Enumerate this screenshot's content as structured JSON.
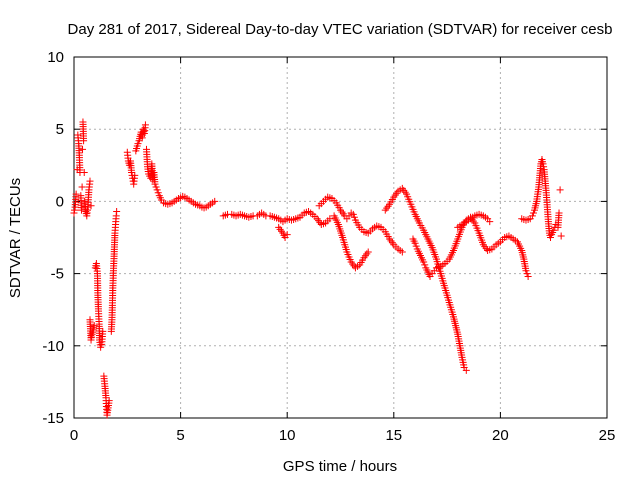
{
  "chart_data": {
    "type": "scatter",
    "title": "Day 281 of 2017, Sidereal Day-to-day VTEC variation (SDTVAR) for receiver cesb",
    "xlabel": "GPS time / hours",
    "ylabel": "SDTVAR / TECUs",
    "xlim": [
      0,
      25
    ],
    "ylim": [
      -15,
      10
    ],
    "xticks": [
      0,
      5,
      10,
      15,
      20,
      25
    ],
    "yticks": [
      -15,
      -10,
      -5,
      0,
      5,
      10
    ],
    "xtick_labels": [
      "0",
      "5",
      "10",
      "15",
      "20",
      "25"
    ],
    "ytick_labels": [
      "-15",
      "-10",
      "-5",
      "0",
      "5",
      "10"
    ],
    "grid": true,
    "marker": "+",
    "series": [
      {
        "name": "SDTVAR",
        "color": "#ff0000",
        "points": [
          [
            0.0,
            -0.8
          ],
          [
            0.05,
            -0.4
          ],
          [
            0.1,
            0.5
          ],
          [
            0.15,
            2.2
          ],
          [
            0.18,
            4.6
          ],
          [
            0.22,
            4.0
          ],
          [
            0.25,
            3.2
          ],
          [
            0.28,
            2.0
          ],
          [
            0.32,
            0.4
          ],
          [
            0.35,
            -0.6
          ],
          [
            0.38,
            1.0
          ],
          [
            0.4,
            3.6
          ],
          [
            0.42,
            5.5
          ],
          [
            0.45,
            4.2
          ],
          [
            0.48,
            2.0
          ],
          [
            0.5,
            0.0
          ],
          [
            0.55,
            -0.7
          ],
          [
            0.6,
            -1.0
          ],
          [
            0.65,
            -0.4
          ],
          [
            0.7,
            0.8
          ],
          [
            0.75,
            1.4
          ],
          [
            0.8,
            -0.3
          ],
          [
            0.75,
            -8.2
          ],
          [
            0.8,
            -9.6
          ],
          [
            0.85,
            -9.2
          ],
          [
            0.95,
            -8.6
          ],
          [
            1.0,
            -4.6
          ],
          [
            1.05,
            -4.3
          ],
          [
            1.1,
            -5.0
          ],
          [
            1.12,
            -6.5
          ],
          [
            1.15,
            -7.6
          ],
          [
            1.18,
            -8.5
          ],
          [
            1.2,
            -9.6
          ],
          [
            1.25,
            -10.1
          ],
          [
            1.3,
            -9.9
          ],
          [
            1.35,
            -9.0
          ],
          [
            1.4,
            -12.1
          ],
          [
            1.45,
            -12.8
          ],
          [
            1.5,
            -13.6
          ],
          [
            1.52,
            -14.2
          ],
          [
            1.55,
            -14.8
          ],
          [
            1.6,
            -14.3
          ],
          [
            1.65,
            -13.8
          ],
          [
            1.75,
            -9.0
          ],
          [
            1.78,
            -8.2
          ],
          [
            1.8,
            -7.2
          ],
          [
            1.82,
            -6.0
          ],
          [
            1.85,
            -4.8
          ],
          [
            1.88,
            -3.8
          ],
          [
            1.9,
            -3.0
          ],
          [
            1.92,
            -2.2
          ],
          [
            1.95,
            -1.6
          ],
          [
            1.98,
            -1.0
          ],
          [
            2.0,
            -0.7
          ],
          [
            2.5,
            3.4
          ],
          [
            2.55,
            2.8
          ],
          [
            2.6,
            2.5
          ],
          [
            2.65,
            2.8
          ],
          [
            2.7,
            2.0
          ],
          [
            2.75,
            1.6
          ],
          [
            2.8,
            1.2
          ],
          [
            2.85,
            1.8
          ],
          [
            2.9,
            3.5
          ],
          [
            3.0,
            4.0
          ],
          [
            3.05,
            4.2
          ],
          [
            3.1,
            4.5
          ],
          [
            3.15,
            4.8
          ],
          [
            3.2,
            4.4
          ],
          [
            3.25,
            5.0
          ],
          [
            3.3,
            4.7
          ],
          [
            3.35,
            5.3
          ],
          [
            3.4,
            3.6
          ],
          [
            3.45,
            2.4
          ],
          [
            3.5,
            1.9
          ],
          [
            3.6,
            1.6
          ],
          [
            3.65,
            2.6
          ],
          [
            3.7,
            1.5
          ],
          [
            3.75,
            2.0
          ],
          [
            3.8,
            1.2
          ],
          [
            3.9,
            0.8
          ],
          [
            4.0,
            0.4
          ],
          [
            4.1,
            0.1
          ],
          [
            4.2,
            -0.1
          ],
          [
            4.3,
            -0.15
          ],
          [
            4.4,
            -0.2
          ],
          [
            4.5,
            -0.15
          ],
          [
            4.6,
            -0.1
          ],
          [
            4.7,
            0.0
          ],
          [
            4.8,
            0.1
          ],
          [
            4.9,
            0.2
          ],
          [
            5.0,
            0.25
          ],
          [
            5.1,
            0.35
          ],
          [
            5.2,
            0.3
          ],
          [
            5.3,
            0.2
          ],
          [
            5.4,
            0.1
          ],
          [
            5.5,
            0.0
          ],
          [
            5.6,
            -0.1
          ],
          [
            5.7,
            -0.2
          ],
          [
            5.8,
            -0.25
          ],
          [
            5.9,
            -0.3
          ],
          [
            6.0,
            -0.4
          ],
          [
            6.1,
            -0.45
          ],
          [
            6.2,
            -0.4
          ],
          [
            6.3,
            -0.3
          ],
          [
            6.4,
            -0.2
          ],
          [
            6.5,
            -0.1
          ],
          [
            6.6,
            0.0
          ],
          [
            7.0,
            -1.0
          ],
          [
            7.2,
            -0.9
          ],
          [
            7.4,
            -0.9
          ],
          [
            7.6,
            -1.0
          ],
          [
            7.8,
            -0.9
          ],
          [
            8.0,
            -1.0
          ],
          [
            8.2,
            -1.1
          ],
          [
            8.4,
            -1.0
          ],
          [
            8.6,
            -1.0
          ],
          [
            8.8,
            -0.8
          ],
          [
            9.0,
            -1.0
          ],
          [
            9.2,
            -1.0
          ],
          [
            9.4,
            -1.1
          ],
          [
            9.6,
            -1.2
          ],
          [
            9.8,
            -1.4
          ],
          [
            10.0,
            -1.2
          ],
          [
            10.2,
            -1.3
          ],
          [
            10.4,
            -1.2
          ],
          [
            10.6,
            -1.1
          ],
          [
            10.8,
            -0.8
          ],
          [
            11.0,
            -0.7
          ],
          [
            11.2,
            -0.9
          ],
          [
            11.4,
            -1.2
          ],
          [
            11.6,
            -1.6
          ],
          [
            11.8,
            -1.5
          ],
          [
            12.0,
            -1.2
          ],
          [
            9.6,
            -1.8
          ],
          [
            9.8,
            -2.2
          ],
          [
            9.9,
            -2.5
          ],
          [
            10.0,
            -2.3
          ],
          [
            11.5,
            -0.3
          ],
          [
            11.7,
            0.0
          ],
          [
            11.9,
            0.3
          ],
          [
            12.1,
            0.2
          ],
          [
            12.3,
            -0.1
          ],
          [
            12.5,
            -0.6
          ],
          [
            12.7,
            -1.0
          ],
          [
            12.8,
            -1.2
          ],
          [
            12.9,
            -1.0
          ],
          [
            13.0,
            -0.8
          ],
          [
            13.1,
            -0.9
          ],
          [
            13.2,
            -1.3
          ],
          [
            13.4,
            -1.8
          ],
          [
            13.6,
            -2.1
          ],
          [
            13.8,
            -2.2
          ],
          [
            14.0,
            -1.9
          ],
          [
            14.2,
            -1.7
          ],
          [
            14.4,
            -1.8
          ],
          [
            14.6,
            -2.1
          ],
          [
            14.8,
            -2.6
          ],
          [
            15.0,
            -3.0
          ],
          [
            15.2,
            -3.3
          ],
          [
            15.4,
            -3.5
          ],
          [
            12.2,
            -1.0
          ],
          [
            12.4,
            -1.6
          ],
          [
            12.6,
            -2.5
          ],
          [
            12.8,
            -3.5
          ],
          [
            13.0,
            -4.2
          ],
          [
            13.2,
            -4.6
          ],
          [
            13.4,
            -4.4
          ],
          [
            13.6,
            -3.9
          ],
          [
            13.8,
            -3.5
          ],
          [
            14.6,
            -0.6
          ],
          [
            14.8,
            -0.2
          ],
          [
            15.0,
            0.3
          ],
          [
            15.2,
            0.7
          ],
          [
            15.4,
            0.9
          ],
          [
            15.6,
            0.5
          ],
          [
            15.8,
            -0.2
          ],
          [
            16.0,
            -0.9
          ],
          [
            16.2,
            -1.5
          ],
          [
            16.4,
            -2.0
          ],
          [
            16.6,
            -2.6
          ],
          [
            16.8,
            -3.2
          ],
          [
            17.0,
            -4.0
          ],
          [
            17.2,
            -5.0
          ],
          [
            17.4,
            -6.0
          ],
          [
            17.6,
            -7.0
          ],
          [
            17.8,
            -8.0
          ],
          [
            18.0,
            -9.2
          ],
          [
            18.1,
            -10.0
          ],
          [
            18.2,
            -10.8
          ],
          [
            18.3,
            -11.5
          ],
          [
            18.4,
            -11.7
          ],
          [
            15.9,
            -2.6
          ],
          [
            16.0,
            -2.9
          ],
          [
            16.1,
            -3.3
          ],
          [
            16.2,
            -3.6
          ],
          [
            16.3,
            -3.9
          ],
          [
            16.4,
            -4.2
          ],
          [
            16.5,
            -4.6
          ],
          [
            16.6,
            -4.9
          ],
          [
            16.7,
            -5.2
          ],
          [
            16.8,
            -5.0
          ],
          [
            16.9,
            -4.8
          ],
          [
            17.0,
            -4.6
          ],
          [
            17.2,
            -4.5
          ],
          [
            17.4,
            -4.3
          ],
          [
            17.6,
            -4.0
          ],
          [
            17.8,
            -3.4
          ],
          [
            18.0,
            -2.6
          ],
          [
            18.2,
            -1.8
          ],
          [
            18.4,
            -1.3
          ],
          [
            18.6,
            -1.1
          ],
          [
            18.8,
            -1.5
          ],
          [
            19.0,
            -2.2
          ],
          [
            19.2,
            -3.0
          ],
          [
            19.4,
            -3.4
          ],
          [
            19.6,
            -3.3
          ],
          [
            19.8,
            -3.0
          ],
          [
            20.0,
            -2.8
          ],
          [
            20.2,
            -2.5
          ],
          [
            20.4,
            -2.4
          ],
          [
            20.6,
            -2.6
          ],
          [
            20.8,
            -2.8
          ],
          [
            21.0,
            -3.4
          ],
          [
            21.1,
            -4.0
          ],
          [
            21.2,
            -4.8
          ],
          [
            21.3,
            -5.2
          ],
          [
            18.0,
            -1.8
          ],
          [
            18.2,
            -1.6
          ],
          [
            18.4,
            -1.4
          ],
          [
            18.6,
            -1.2
          ],
          [
            18.8,
            -1.0
          ],
          [
            19.0,
            -0.9
          ],
          [
            19.2,
            -1.0
          ],
          [
            19.4,
            -1.2
          ],
          [
            19.5,
            -1.4
          ],
          [
            21.0,
            -1.2
          ],
          [
            21.2,
            -1.3
          ],
          [
            21.4,
            -1.2
          ],
          [
            21.5,
            -1.0
          ],
          [
            21.6,
            -0.6
          ],
          [
            21.7,
            0.0
          ],
          [
            21.8,
            1.0
          ],
          [
            21.85,
            1.8
          ],
          [
            21.9,
            2.6
          ],
          [
            21.95,
            2.9
          ],
          [
            22.0,
            2.6
          ],
          [
            22.05,
            2.2
          ],
          [
            22.1,
            1.4
          ],
          [
            22.15,
            0.6
          ],
          [
            22.2,
            -0.4
          ],
          [
            22.25,
            -1.4
          ],
          [
            22.3,
            -2.2
          ],
          [
            22.35,
            -2.5
          ],
          [
            22.4,
            -2.3
          ],
          [
            22.5,
            -2.0
          ],
          [
            22.6,
            -1.6
          ],
          [
            22.7,
            -1.8
          ],
          [
            22.75,
            -0.8
          ],
          [
            22.8,
            0.8
          ],
          [
            22.85,
            -2.4
          ]
        ]
      }
    ]
  }
}
